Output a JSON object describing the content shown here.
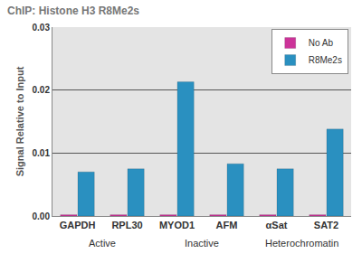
{
  "chart_data": {
    "type": "bar",
    "title": "ChIP: Histone H3 R8Me2s",
    "y_label": "Signal Relative to Input",
    "categories": [
      "GAPDH",
      "RPL30",
      "MYOD1",
      "AFM",
      "αSat",
      "SAT2"
    ],
    "series": [
      {
        "name": "No Ab",
        "color": "#cc3399",
        "values": [
          0.0002,
          0.0002,
          0.0002,
          0.0002,
          0.0002,
          0.0002
        ]
      },
      {
        "name": "R8Me2s",
        "color": "#2a90c0",
        "values": [
          0.007,
          0.0075,
          0.0213,
          0.0083,
          0.0075,
          0.0138
        ]
      }
    ],
    "groups": [
      {
        "label": "Active",
        "categories": [
          "GAPDH",
          "RPL30"
        ]
      },
      {
        "label": "Inactive",
        "categories": [
          "MYOD1",
          "AFM"
        ]
      },
      {
        "label": "Heterochromatin",
        "categories": [
          "αSat",
          "SAT2"
        ]
      }
    ],
    "ylim": [
      0,
      0.03
    ],
    "yticks": [
      {
        "value": 0,
        "label": "0.00"
      },
      {
        "value": 0.01,
        "label": "0.01"
      },
      {
        "value": 0.02,
        "label": "0.02"
      },
      {
        "value": 0.03,
        "label": "0.03"
      }
    ],
    "grid": true,
    "legend": "upper right"
  }
}
